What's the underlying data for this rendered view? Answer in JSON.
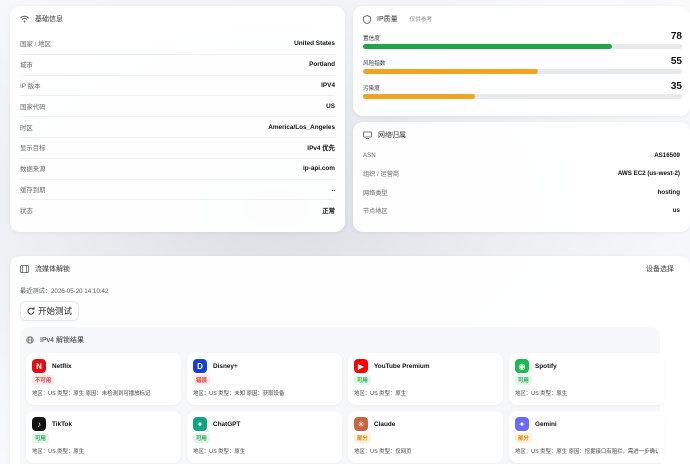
{
  "basic": {
    "title": "基础信息",
    "rows": [
      {
        "label": "国家 / 地区",
        "value": "United States"
      },
      {
        "label": "城市",
        "value": "Portland"
      },
      {
        "label": "IP 版本",
        "value": "IPV4"
      },
      {
        "label": "国家代码",
        "value": "US"
      },
      {
        "label": "时区",
        "value": "America/Los_Angeles"
      },
      {
        "label": "显示目标",
        "value": "IPv4 优先"
      },
      {
        "label": "数据来源",
        "value": "ip-api.com"
      },
      {
        "label": "缓存到期",
        "value": ".."
      },
      {
        "label": "状态",
        "value": "正常"
      }
    ]
  },
  "score": {
    "title": "IP质量",
    "note": "仅供参考",
    "items": [
      {
        "label": "置信度",
        "value": "78",
        "fraction": 0.78,
        "color": "#1fa64a"
      },
      {
        "label": "风险指数",
        "value": "55",
        "fraction": 0.55,
        "color": "#f0a41f"
      },
      {
        "label": "污染度",
        "value": "35",
        "fraction": 0.35,
        "color": "#f0a41f"
      }
    ]
  },
  "network": {
    "title": "网络归属",
    "rows": [
      {
        "label": "ASN",
        "value": "AS16509"
      },
      {
        "label": "组织 / 运营商",
        "value": "AWS EC2 (us-west-2)"
      },
      {
        "label": "网络类型",
        "value": "hosting"
      },
      {
        "label": "节点地区",
        "value": "us"
      }
    ]
  },
  "stream": {
    "title": "流媒体解锁",
    "device_select": "设备选择",
    "last_test": "最近测试：2026-05-20 14:10:42",
    "start_label": "开始测试",
    "section_title": "IPv4 解锁结果",
    "services": [
      {
        "name": "Netflix",
        "logo": "N",
        "logo_bg": "#e50914",
        "logo_icon": "netflix-icon",
        "status": "不可用",
        "status_color": "#e53935",
        "status_bg": "#fde8e8",
        "detail": "地区：US 类型：原生 原因：未检测到可播放标记"
      },
      {
        "name": "Disney+",
        "logo": "D",
        "logo_bg": "#1a3fd0",
        "logo_icon": "disney-icon",
        "status": "错误",
        "status_color": "#e53935",
        "status_bg": "#fde8e8",
        "detail": "地区：US 类型：未知 原因：获取设备"
      },
      {
        "name": "YouTube Premium",
        "logo": "▶",
        "logo_bg": "#ff0000",
        "logo_icon": "youtube-icon",
        "status": "可用",
        "status_color": "#1fa64a",
        "status_bg": "#e4f6ea",
        "detail": "地区：US 类型：原生"
      },
      {
        "name": "Spotify",
        "logo": "◉",
        "logo_bg": "#1db954",
        "logo_icon": "spotify-icon",
        "status": "可用",
        "status_color": "#1fa64a",
        "status_bg": "#e4f6ea",
        "detail": "地区：US 类型：原生"
      },
      {
        "name": "TikTok",
        "logo": "♪",
        "logo_bg": "#111111",
        "logo_icon": "tiktok-icon",
        "status": "可用",
        "status_color": "#1fa64a",
        "status_bg": "#e4f6ea",
        "detail": "地区：US 类型：原生"
      },
      {
        "name": "ChatGPT",
        "logo": "✦",
        "logo_bg": "#10a37f",
        "logo_icon": "chatgpt-icon",
        "status": "可用",
        "status_color": "#1fa64a",
        "status_bg": "#e4f6ea",
        "detail": "地区：US 类型：原生"
      },
      {
        "name": "Claude",
        "logo": "✳",
        "logo_bg": "#c96442",
        "logo_icon": "claude-icon",
        "status": "部分",
        "status_color": "#e08a00",
        "status_bg": "#fff2dc",
        "detail": "地区：US 类型：仅网页"
      },
      {
        "name": "Gemini",
        "logo": "✦",
        "logo_bg": "#6b6cf6",
        "logo_icon": "gemini-icon",
        "status": "部分",
        "status_color": "#e08a00",
        "status_bg": "#fff2dc",
        "detail": "地区：US 类型：原生 原因：挖掘接口有阻拦，需进一步确认"
      }
    ]
  }
}
